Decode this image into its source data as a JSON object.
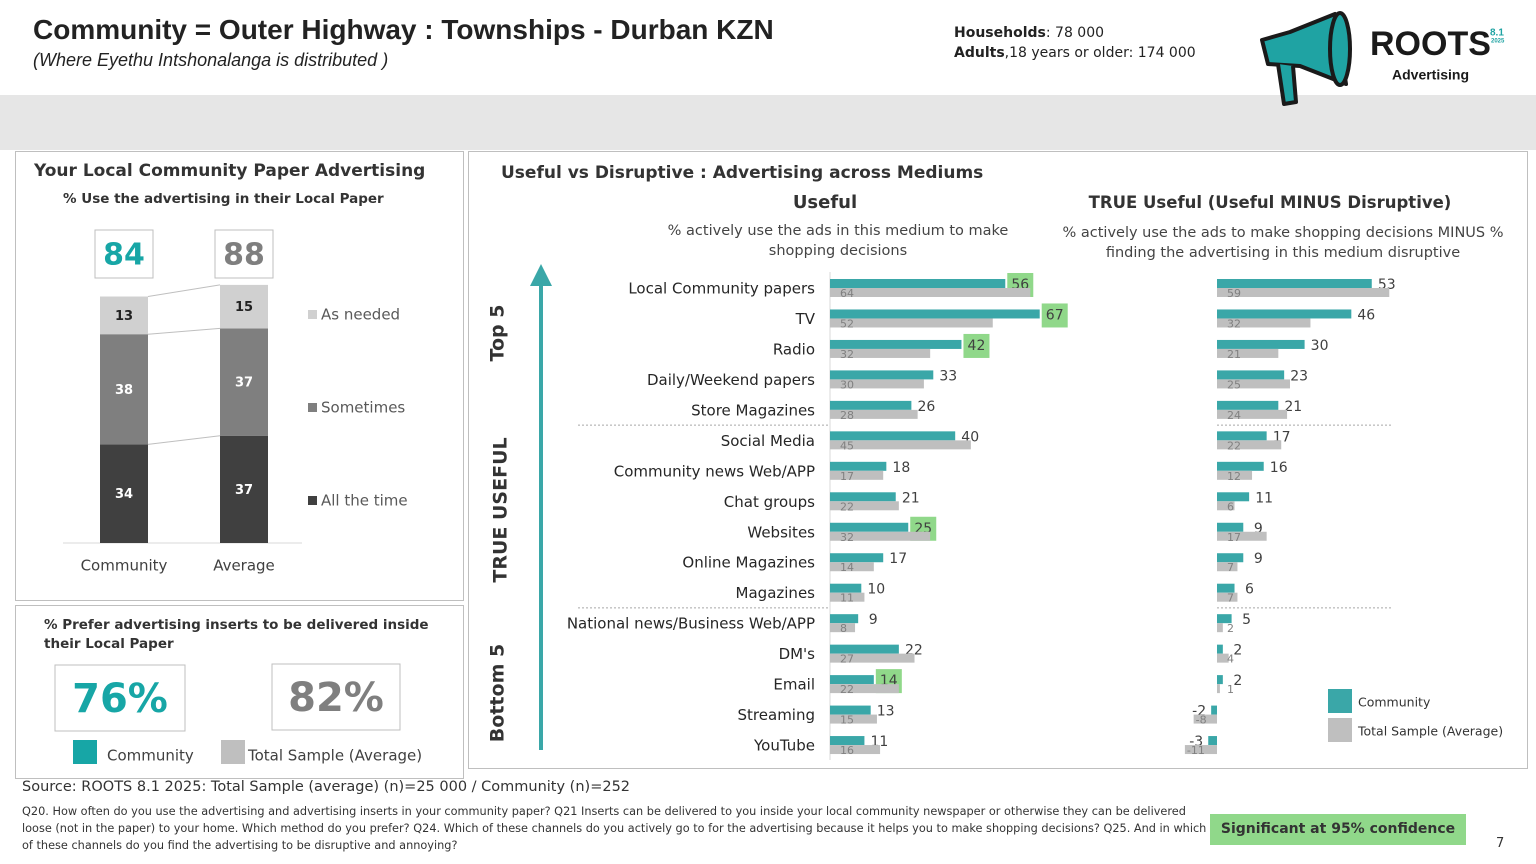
{
  "header": {
    "title": "Community = Outer Highway : Townships - Durban KZN",
    "subtitle": "(Where Eyethu Intshonalanga  is distributed )",
    "stats": [
      {
        "label": "Households",
        "text": ": 78 000"
      },
      {
        "label": "Adults",
        "text": ",18 years or older: 174 000"
      }
    ]
  },
  "logo": {
    "name": "ROOTS",
    "version": "8.1",
    "year": "2025",
    "tagline": "Advertising"
  },
  "right_panel": {
    "title": "Useful vs Disruptive : Advertising across Mediums",
    "sections": [
      "Top 5",
      "TRUE USEFUL",
      "Bottom 5"
    ]
  },
  "chart_data": [
    {
      "type": "stacked",
      "title": "Your Local Community Paper Advertising",
      "subtitle": "% Use the advertising in their Local Paper",
      "categories": [
        "Community",
        "Average"
      ],
      "series": [
        {
          "name": "All the time",
          "color": "#404040",
          "values": [
            34,
            37
          ]
        },
        {
          "name": "Sometimes",
          "color": "#7f7f7f",
          "values": [
            38,
            37
          ]
        },
        {
          "name": "As needed",
          "color": "#d0d0d0",
          "values": [
            13,
            15
          ]
        }
      ],
      "totals": [
        84,
        88
      ],
      "total_colors": [
        "#17a6a6",
        "#7f7f7f"
      ]
    },
    {
      "type": "kpi",
      "title": "% Prefer advertising inserts to be delivered inside their Local Paper",
      "categories": [
        "Community",
        "Total Sample (Average)"
      ],
      "values": [
        76,
        82
      ],
      "value_labels": [
        "76%",
        "82%"
      ],
      "colors": [
        "#17a6a6",
        "#bfbfbf"
      ],
      "text_colors": [
        "#17a6a6",
        "#7f7f7f"
      ]
    },
    {
      "type": "hbar",
      "title": "Useful",
      "subtitle": "% actively use the ads in this medium to make shopping decisions",
      "categories": [
        "Local Community papers",
        "TV",
        "Radio",
        "Daily/Weekend papers",
        "Store Magazines",
        "Social Media",
        "Community news Web/APP",
        "Chat groups",
        "Websites",
        "Online Magazines",
        "Magazines",
        "National news/Business Web/APP",
        "DM's",
        "Email",
        "Streaming",
        "YouTube"
      ],
      "series": [
        {
          "color": "#3aa7a8",
          "values": [
            56,
            67,
            42,
            33,
            26,
            40,
            18,
            21,
            25,
            17,
            10,
            9,
            22,
            14,
            13,
            11
          ],
          "significant": [
            true,
            true,
            true,
            false,
            false,
            false,
            false,
            false,
            true,
            false,
            false,
            false,
            false,
            true,
            false,
            false
          ]
        },
        {
          "color": "#bfbfbf",
          "values": [
            64,
            52,
            32,
            30,
            28,
            45,
            17,
            22,
            32,
            14,
            11,
            8,
            27,
            22,
            15,
            16
          ]
        }
      ]
    },
    {
      "type": "hbar",
      "title": "TRUE Useful (Useful MINUS Disruptive)",
      "subtitle": "% actively use the ads to make shopping decisions MINUS % finding the advertising in this medium disruptive",
      "series": [
        {
          "name": "Community",
          "color": "#3aa7a8",
          "values": [
            53,
            46,
            30,
            23,
            21,
            17,
            16,
            11,
            9,
            9,
            6,
            5,
            2,
            2,
            -2,
            -3
          ]
        },
        {
          "name": "Total Sample (Average)",
          "color": "#bfbfbf",
          "values": [
            59,
            32,
            21,
            25,
            24,
            22,
            12,
            6,
            17,
            7,
            7,
            2,
            4,
            1,
            -8,
            -11
          ]
        }
      ]
    }
  ],
  "source": "Source: ROOTS 8.1 2025:  Total Sample (average) (n)=25 000 / Community (n)=252",
  "footnote": "Q20. How often do you use the advertising and advertising inserts in your community paper? Q21 Inserts can be delivered to you inside your local community newspaper or otherwise they can be delivered loose (not in the paper) to your home.  Which method do you prefer? Q24. Which of these channels do you actively go to for the advertising because it helps you to make shopping decisions? Q25. And in which of these channels do you find the advertising to be disruptive and annoying?",
  "significance_note": "Significant at 95% confidence",
  "significance_color": "#90d88a",
  "page_number": "7"
}
